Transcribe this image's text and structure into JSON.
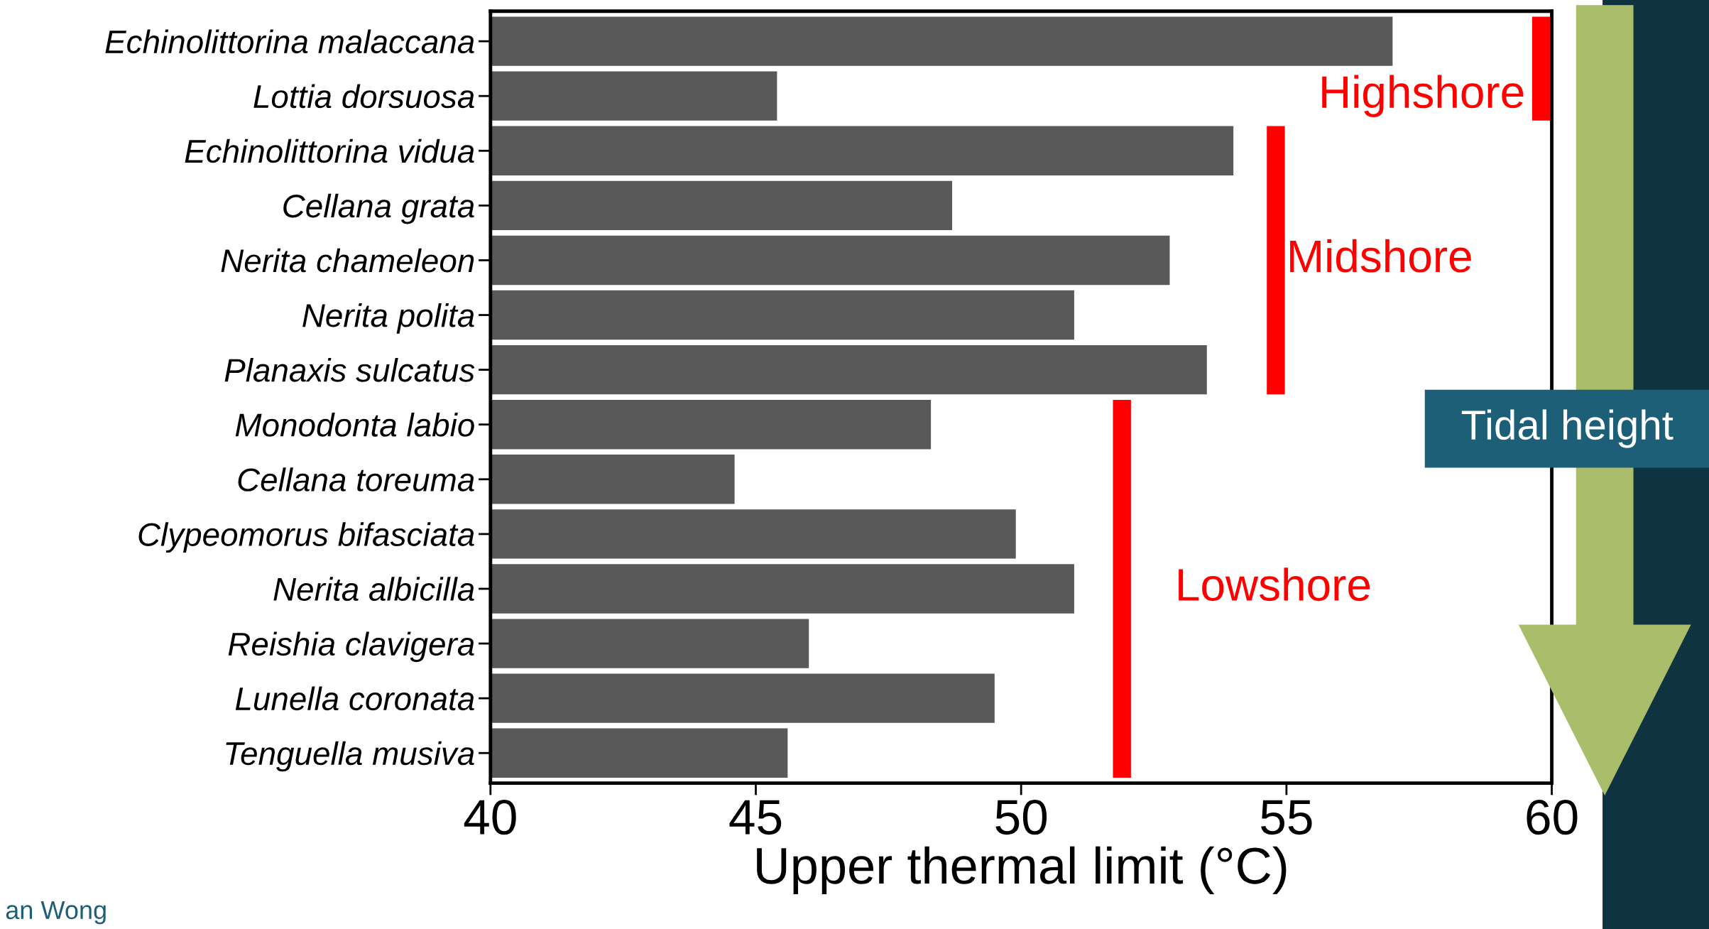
{
  "chart_data": {
    "type": "bar",
    "orientation": "horizontal",
    "categories": [
      "Echinolittorina malaccana",
      "Lottia dorsuosa",
      "Echinolittorina vidua",
      "Cellana grata",
      "Nerita chameleon",
      "Nerita polita",
      "Planaxis sulcatus",
      "Monodonta labio",
      "Cellana toreuma",
      "Clypeomorus bifasciata",
      "Nerita albicilla",
      "Reishia clavigera",
      "Lunella coronata",
      "Tenguella musiva"
    ],
    "values": [
      57.0,
      45.4,
      54.0,
      48.7,
      52.8,
      51.0,
      53.5,
      48.3,
      44.6,
      49.9,
      51.0,
      46.0,
      49.5,
      45.6
    ],
    "color": "#595959",
    "xlabel": "Upper thermal limit (°C)",
    "xlim": [
      40,
      60
    ],
    "xticks": [
      40,
      45,
      50,
      55,
      60
    ],
    "grid": false,
    "legend": false,
    "annotations": [
      "Highshore",
      "Midshore",
      "Lowshore",
      "Tidal height",
      "an Wong"
    ]
  }
}
